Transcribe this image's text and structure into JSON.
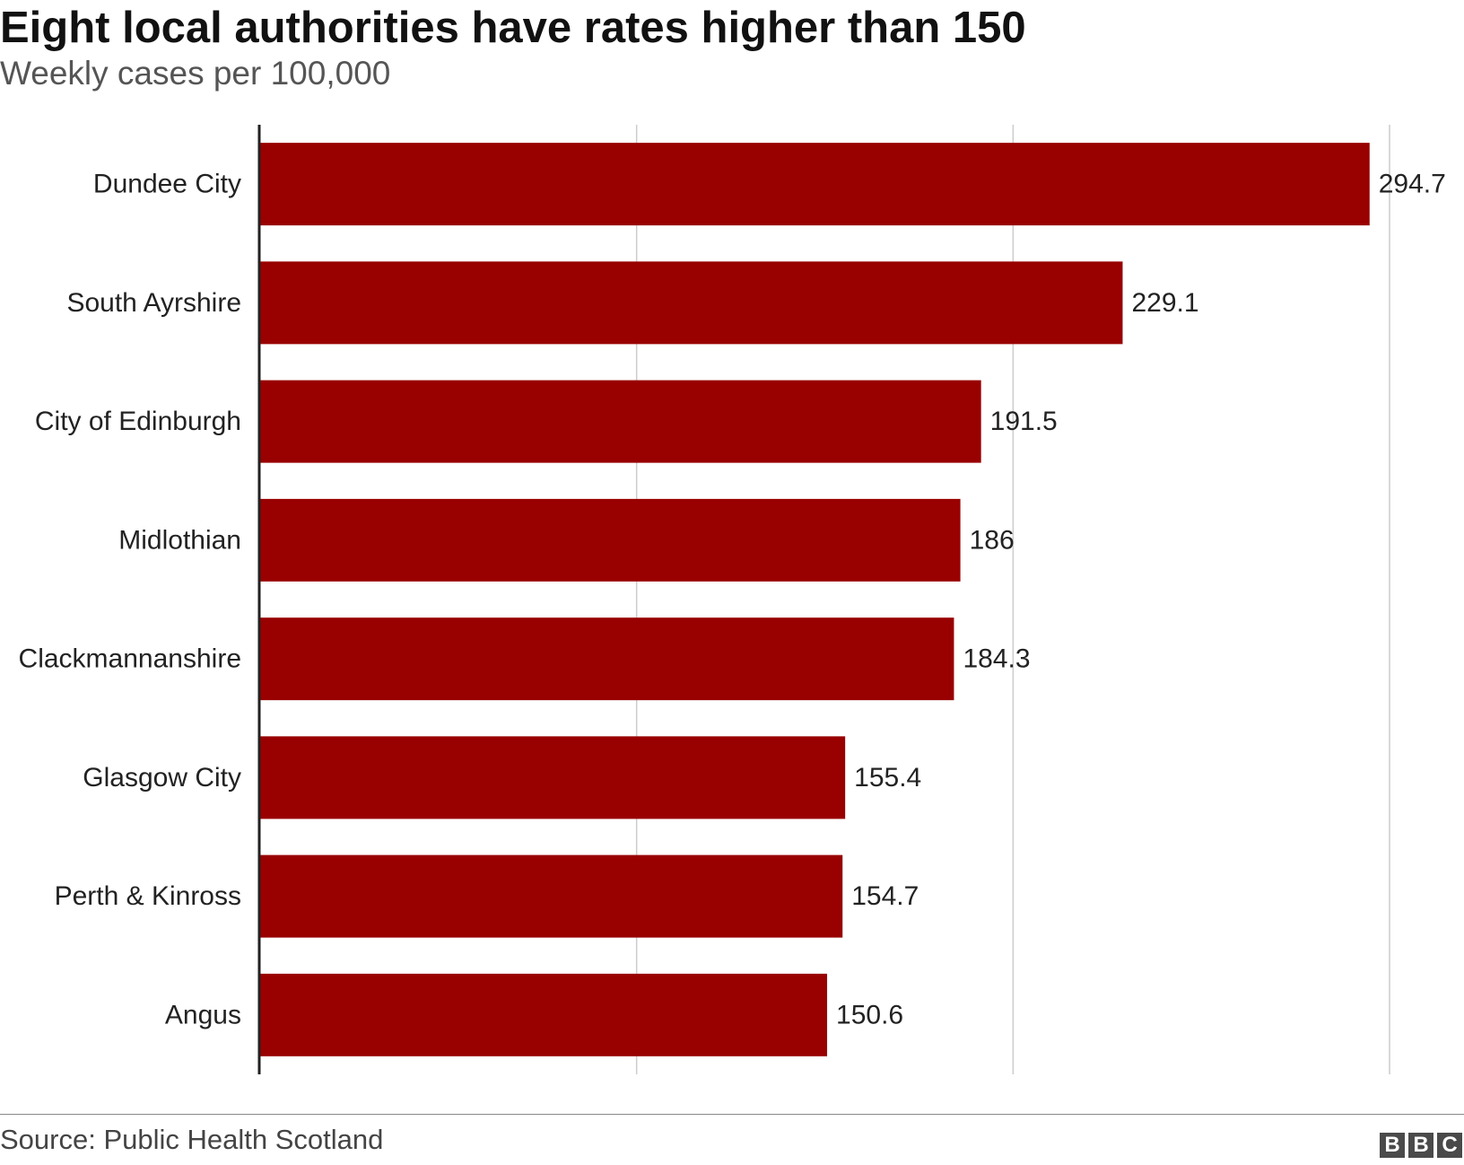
{
  "header": {
    "title": "Eight local authorities have rates higher than 150",
    "subtitle": "Weekly cases per 100,000"
  },
  "footer": {
    "source": "Source: Public Health Scotland",
    "logo_letters": [
      "B",
      "B",
      "C"
    ]
  },
  "colors": {
    "bar": "#990000",
    "grid": "#cccccc",
    "axis": "#222222"
  },
  "chart_data": {
    "type": "bar",
    "orientation": "horizontal",
    "title": "Eight local authorities have rates higher than 150",
    "subtitle": "Weekly cases per 100,000",
    "categories": [
      "Dundee City",
      "South Ayrshire",
      "City of Edinburgh",
      "Midlothian",
      "Clackmannanshire",
      "Glasgow City",
      "Perth & Kinross",
      "Angus"
    ],
    "values": [
      294.7,
      229.1,
      191.5,
      186,
      184.3,
      155.4,
      154.7,
      150.6
    ],
    "value_labels": [
      "294.7",
      "229.1",
      "191.5",
      "186",
      "184.3",
      "155.4",
      "154.7",
      "150.6"
    ],
    "xlim": [
      0,
      300
    ],
    "gridlines_at": [
      100,
      200,
      300
    ],
    "grid": true,
    "legend": "none"
  }
}
